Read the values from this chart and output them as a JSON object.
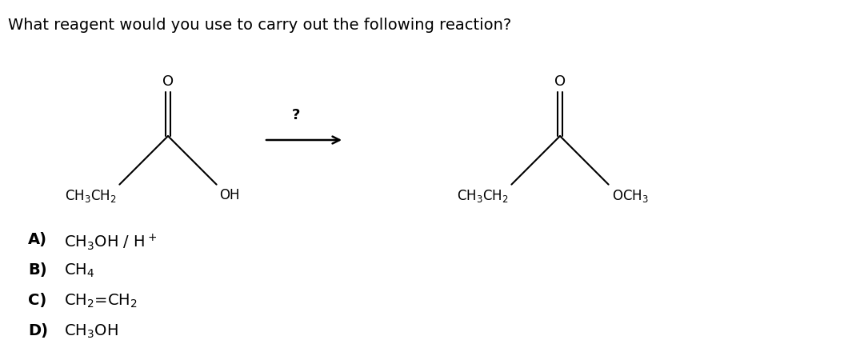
{
  "title": "What reagent would you use to carry out the following reaction?",
  "title_fontsize": 14,
  "title_color": "#000000",
  "background_color": "#ffffff",
  "choices": [
    {
      "letter": "A)",
      "text_parts": [
        [
          "CH",
          "3",
          "OH / H",
          "+",
          ""
        ]
      ]
    },
    {
      "letter": "B)",
      "text_parts": [
        [
          "CH",
          "4",
          "",
          "",
          ""
        ]
      ]
    },
    {
      "letter": "C)",
      "text_parts": [
        [
          "CH",
          "2",
          "=CH",
          "2",
          ""
        ]
      ]
    },
    {
      "letter": "D)",
      "text_parts": [
        [
          "CH",
          "3",
          "OH",
          "",
          ""
        ]
      ]
    }
  ]
}
